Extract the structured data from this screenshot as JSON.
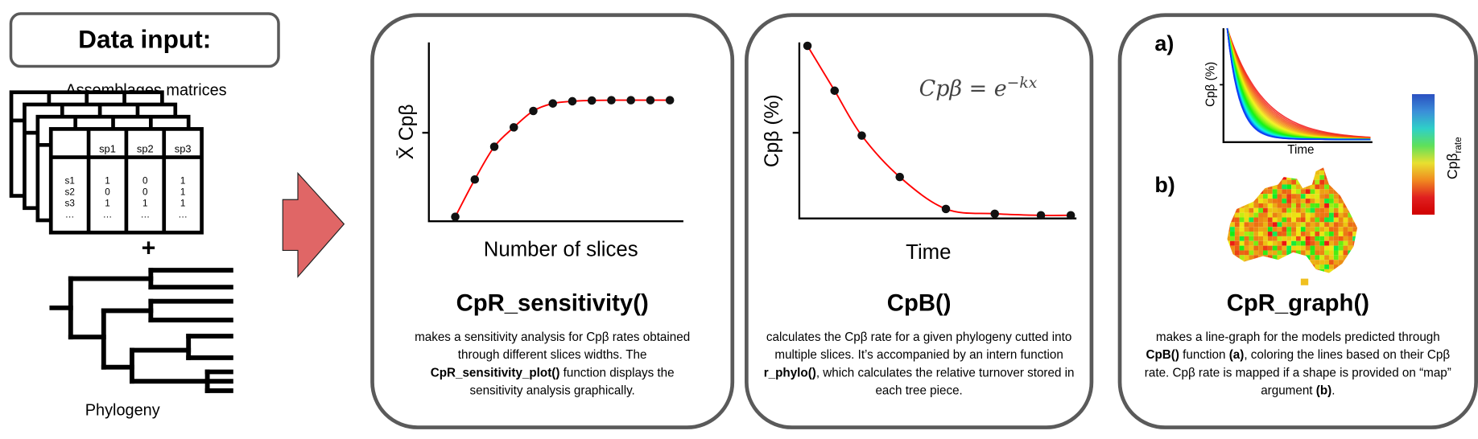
{
  "data_input": {
    "title": "Data input:",
    "matrices_label": "Assemblages matrices",
    "matrix": {
      "columns": [
        "sp1",
        "sp2",
        "sp3"
      ],
      "rows": [
        {
          "site": "s1",
          "values": [
            "1",
            "0",
            "1"
          ]
        },
        {
          "site": "s2",
          "values": [
            "0",
            "0",
            "1"
          ]
        },
        {
          "site": "s3",
          "values": [
            "1",
            "1",
            "1"
          ]
        },
        {
          "site": "…",
          "values": [
            "…",
            "…",
            "…"
          ]
        }
      ]
    },
    "plus": "+",
    "phylogeny_label": "Phylogeny"
  },
  "colors": {
    "arrow": "#e06666",
    "fit_line": "#ff0000",
    "panel_border": "#5a5a5a"
  },
  "panels": [
    {
      "function": "CpR_sensitivity()",
      "ylabel": "X̄ Cpβ",
      "xlabel": "Number of slices",
      "description": [
        {
          "text": "makes a sensitivity analysis for Cpβ rates obtained through different slices widths. The ",
          "bold": false
        },
        {
          "text": "CpR_sensitivity_plot()",
          "bold": true
        },
        {
          "text": " function displays the sensitivity analysis graphically.",
          "bold": false
        }
      ]
    },
    {
      "function": "CpB()",
      "ylabel": "Cpβ (%)",
      "xlabel": "Time",
      "formula_lhs": "Cpβ = e",
      "formula_exp": "−kx",
      "description": [
        {
          "text": "calculates the Cpβ rate for a given phylogeny cutted into multiple slices. It’s accompanied by an intern function ",
          "bold": false
        },
        {
          "text": "r_phylo()",
          "bold": true
        },
        {
          "text": ", which calculates the relative turnover stored in each tree piece.",
          "bold": false
        }
      ]
    },
    {
      "function": "CpR_graph()",
      "label_a": "a)",
      "label_b": "b)",
      "ylabel": "Cpβ (%)",
      "xlabel": "Time",
      "colorbar_label": "Cpβ",
      "colorbar_sub": "rate",
      "description": [
        {
          "text": "makes a line-graph for the models predicted through ",
          "bold": false
        },
        {
          "text": "CpB()",
          "bold": true
        },
        {
          "text": " function ",
          "bold": false
        },
        {
          "text": "(a)",
          "bold": true
        },
        {
          "text": ", coloring the lines based on their Cpβ rate. Cpβ rate is mapped if a shape is provided on “map” argument ",
          "bold": false
        },
        {
          "text": "(b)",
          "bold": true
        },
        {
          "text": ".",
          "bold": false
        }
      ]
    }
  ],
  "chart_data": [
    {
      "type": "line",
      "title": "",
      "xlabel": "Number of slices",
      "ylabel": "X̄ Cpβ",
      "x": [
        1,
        2,
        3,
        4,
        5,
        6,
        7,
        8,
        9,
        10,
        11,
        12
      ],
      "values": [
        0.03,
        0.28,
        0.5,
        0.63,
        0.74,
        0.79,
        0.805,
        0.81,
        0.812,
        0.812,
        0.812,
        0.812
      ],
      "fit_line": true
    },
    {
      "type": "line",
      "title": "",
      "xlabel": "Time",
      "ylabel": "Cpβ (%)",
      "x": [
        0.03,
        0.13,
        0.23,
        0.37,
        0.54,
        0.72,
        0.89,
        1.0
      ],
      "values": [
        1.0,
        0.74,
        0.48,
        0.24,
        0.055,
        0.027,
        0.018,
        0.018
      ],
      "fit_line": true
    }
  ]
}
